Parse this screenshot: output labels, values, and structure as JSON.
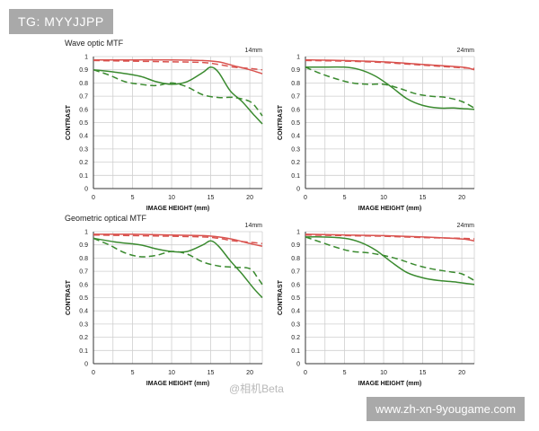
{
  "watermark_tag": "TG: MYYJJPP",
  "watermark_url": "www.zh-xn-9yougame.com",
  "weibo_mark": "@相机Beta",
  "sections": [
    "Wave optic MTF",
    "Geometric optical MTF"
  ],
  "colors": {
    "red": "#d9534f",
    "green": "#3a8a2f",
    "grid": "#cfcfcf",
    "axis": "#333333"
  },
  "chart_data": [
    {
      "type": "line",
      "section": "Wave optic MTF",
      "focal": "14mm",
      "xlabel": "IMAGE HEIGHT (mm)",
      "ylabel": "CONTRAST",
      "xlim": [
        0,
        21.6
      ],
      "ylim": [
        0,
        1
      ],
      "xticks": [
        0,
        5,
        10,
        15,
        20
      ],
      "yticks": [
        0,
        0.1,
        0.2,
        0.3,
        0.4,
        0.5,
        0.6,
        0.7,
        0.8,
        0.9,
        1
      ],
      "series": [
        {
          "color": "red",
          "dash": false,
          "x": [
            0,
            5,
            10,
            14,
            16,
            18,
            20,
            21.6
          ],
          "y": [
            0.975,
            0.975,
            0.975,
            0.97,
            0.96,
            0.93,
            0.9,
            0.87
          ]
        },
        {
          "color": "red",
          "dash": true,
          "x": [
            0,
            5,
            10,
            14,
            16,
            18,
            20,
            21.6
          ],
          "y": [
            0.97,
            0.965,
            0.96,
            0.955,
            0.94,
            0.92,
            0.91,
            0.9
          ]
        },
        {
          "color": "green",
          "dash": false,
          "x": [
            0,
            3,
            6,
            8,
            10,
            12,
            14,
            15,
            16,
            17.5,
            19,
            20.5,
            21.6
          ],
          "y": [
            0.9,
            0.88,
            0.85,
            0.81,
            0.79,
            0.81,
            0.88,
            0.92,
            0.88,
            0.74,
            0.66,
            0.56,
            0.49
          ]
        },
        {
          "color": "green",
          "dash": true,
          "x": [
            0,
            2,
            4,
            6,
            8,
            10,
            12,
            14,
            16,
            18,
            20,
            21,
            21.6
          ],
          "y": [
            0.9,
            0.86,
            0.81,
            0.79,
            0.78,
            0.8,
            0.77,
            0.71,
            0.69,
            0.69,
            0.66,
            0.6,
            0.55
          ]
        }
      ]
    },
    {
      "type": "line",
      "section": "Wave optic MTF",
      "focal": "24mm",
      "xlabel": "IMAGE HEIGHT (mm)",
      "ylabel": "CONTRAST",
      "xlim": [
        0,
        21.6
      ],
      "ylim": [
        0,
        1
      ],
      "xticks": [
        0,
        5,
        10,
        15,
        20
      ],
      "yticks": [
        0,
        0.1,
        0.2,
        0.3,
        0.4,
        0.5,
        0.6,
        0.7,
        0.8,
        0.9,
        1
      ],
      "series": [
        {
          "color": "red",
          "dash": false,
          "x": [
            0,
            5,
            10,
            15,
            20,
            21.6
          ],
          "y": [
            0.975,
            0.97,
            0.96,
            0.94,
            0.92,
            0.9
          ]
        },
        {
          "color": "red",
          "dash": true,
          "x": [
            0,
            5,
            10,
            15,
            20,
            21.6
          ],
          "y": [
            0.97,
            0.965,
            0.955,
            0.935,
            0.915,
            0.91
          ]
        },
        {
          "color": "green",
          "dash": false,
          "x": [
            0,
            2,
            5,
            7,
            9,
            11,
            13,
            15,
            17,
            19,
            21.6
          ],
          "y": [
            0.92,
            0.92,
            0.92,
            0.9,
            0.85,
            0.77,
            0.68,
            0.63,
            0.61,
            0.61,
            0.6
          ]
        },
        {
          "color": "green",
          "dash": true,
          "x": [
            0,
            2,
            4,
            6,
            8,
            10,
            12,
            14,
            16,
            18,
            20,
            21.6
          ],
          "y": [
            0.92,
            0.87,
            0.83,
            0.8,
            0.79,
            0.79,
            0.76,
            0.72,
            0.7,
            0.69,
            0.66,
            0.61
          ]
        }
      ]
    },
    {
      "type": "line",
      "section": "Geometric optical MTF",
      "focal": "14mm",
      "xlabel": "IMAGE HEIGHT (mm)",
      "ylabel": "CONTRAST",
      "xlim": [
        0,
        21.6
      ],
      "ylim": [
        0,
        1
      ],
      "xticks": [
        0,
        5,
        10,
        15,
        20
      ],
      "yticks": [
        0,
        0.1,
        0.2,
        0.3,
        0.4,
        0.5,
        0.6,
        0.7,
        0.8,
        0.9,
        1
      ],
      "series": [
        {
          "color": "red",
          "dash": false,
          "x": [
            0,
            5,
            10,
            14,
            16,
            18,
            20,
            21.6
          ],
          "y": [
            0.98,
            0.98,
            0.975,
            0.97,
            0.96,
            0.94,
            0.91,
            0.89
          ]
        },
        {
          "color": "red",
          "dash": true,
          "x": [
            0,
            5,
            10,
            14,
            16,
            18,
            20,
            21.6
          ],
          "y": [
            0.975,
            0.97,
            0.965,
            0.96,
            0.95,
            0.93,
            0.92,
            0.91
          ]
        },
        {
          "color": "green",
          "dash": false,
          "x": [
            0,
            3,
            6,
            8,
            10,
            12,
            14,
            15,
            16,
            17.5,
            19,
            20.5,
            21.6
          ],
          "y": [
            0.95,
            0.92,
            0.9,
            0.87,
            0.85,
            0.85,
            0.9,
            0.93,
            0.89,
            0.78,
            0.68,
            0.57,
            0.5
          ]
        },
        {
          "color": "green",
          "dash": true,
          "x": [
            0,
            2,
            4,
            6,
            8,
            10,
            12,
            14,
            16,
            18,
            20,
            21,
            21.6
          ],
          "y": [
            0.95,
            0.9,
            0.84,
            0.81,
            0.82,
            0.85,
            0.83,
            0.77,
            0.74,
            0.73,
            0.72,
            0.65,
            0.6
          ]
        }
      ]
    },
    {
      "type": "line",
      "section": "Geometric optical MTF",
      "focal": "24mm",
      "xlabel": "IMAGE HEIGHT (mm)",
      "ylabel": "CONTRAST",
      "xlim": [
        0,
        21.6
      ],
      "ylim": [
        0,
        1
      ],
      "xticks": [
        0,
        5,
        10,
        15,
        20
      ],
      "yticks": [
        0,
        0.1,
        0.2,
        0.3,
        0.4,
        0.5,
        0.6,
        0.7,
        0.8,
        0.9,
        1
      ],
      "series": [
        {
          "color": "red",
          "dash": false,
          "x": [
            0,
            5,
            10,
            15,
            20,
            21.6
          ],
          "y": [
            0.98,
            0.975,
            0.97,
            0.96,
            0.945,
            0.93
          ]
        },
        {
          "color": "red",
          "dash": true,
          "x": [
            0,
            5,
            10,
            15,
            20,
            21.6
          ],
          "y": [
            0.975,
            0.97,
            0.965,
            0.955,
            0.95,
            0.945
          ]
        },
        {
          "color": "green",
          "dash": false,
          "x": [
            0,
            2,
            5,
            7,
            9,
            11,
            13,
            15,
            17,
            19,
            21.6
          ],
          "y": [
            0.96,
            0.96,
            0.95,
            0.92,
            0.86,
            0.77,
            0.69,
            0.65,
            0.63,
            0.62,
            0.6
          ]
        },
        {
          "color": "green",
          "dash": true,
          "x": [
            0,
            2,
            4,
            6,
            8,
            10,
            12,
            14,
            16,
            18,
            20,
            21.6
          ],
          "y": [
            0.96,
            0.92,
            0.88,
            0.85,
            0.84,
            0.82,
            0.79,
            0.75,
            0.72,
            0.7,
            0.68,
            0.63
          ]
        }
      ]
    }
  ]
}
